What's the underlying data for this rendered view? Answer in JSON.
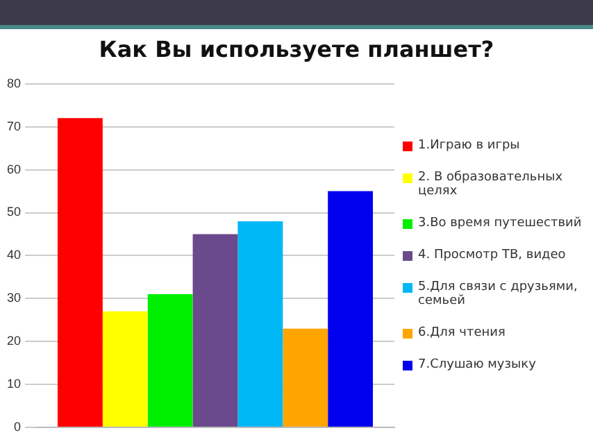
{
  "chart_data": {
    "type": "bar",
    "title": "Как Вы используете планшет?",
    "categories": [
      null
    ],
    "series": [
      {
        "name": "1.Играю в игры",
        "color": "#ff0000",
        "values": [
          72
        ]
      },
      {
        "name": "2. В образовательных целях",
        "color": "#ffff00",
        "values": [
          27
        ]
      },
      {
        "name": "3.Во время путешествий",
        "color": "#00ee00",
        "values": [
          31
        ]
      },
      {
        "name": "4. Просмотр ТВ, видео",
        "color": "#6a4a8c",
        "values": [
          45
        ]
      },
      {
        "name": "5.Для связи с друзьями, семьей",
        "color": "#00b8f5",
        "values": [
          48
        ]
      },
      {
        "name": "6.Для чтения",
        "color": "#ffa500",
        "values": [
          23
        ]
      },
      {
        "name": "7.Слушаю музыку",
        "color": "#0000ee",
        "values": [
          55
        ]
      }
    ],
    "ylim": [
      0,
      80
    ],
    "yticks": [
      0,
      10,
      20,
      30,
      40,
      50,
      60,
      70,
      80
    ],
    "grid": "y",
    "legend": "right"
  }
}
